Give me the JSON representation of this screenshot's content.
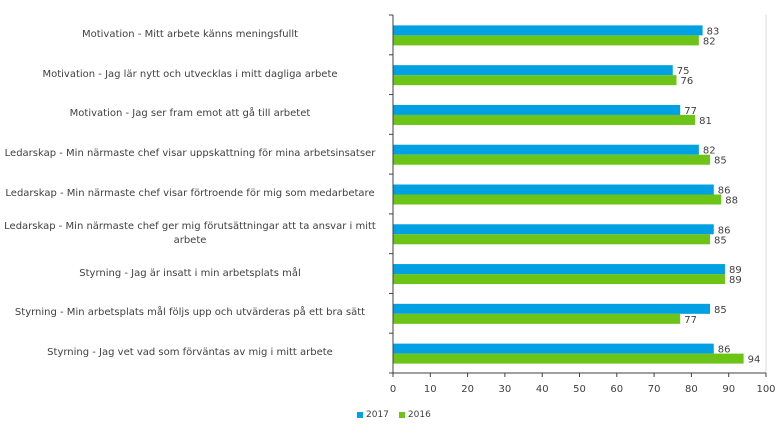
{
  "chart_data": {
    "type": "bar",
    "orientation": "horizontal",
    "categories": [
      "Motivation - Mitt arbete känns meningsfullt",
      "Motivation - Jag lär nytt och utvecklas i mitt dagliga arbete",
      "Motivation - Jag ser fram emot att gå till arbetet",
      "Ledarskap - Min närmaste chef visar uppskattning för mina arbetsinsatser",
      "Ledarskap - Min närmaste chef visar förtroende för mig som medarbetare",
      "Ledarskap - Min närmaste chef ger mig förutsättningar att ta ansvar i mitt arbete",
      "Styrning - Jag är insatt i min arbetsplats mål",
      "Styrning - Min arbetsplats mål följs upp och utvärderas på ett bra sätt",
      "Styrning - Jag vet vad som förväntas av mig i mitt arbete"
    ],
    "series": [
      {
        "name": "2017",
        "color": "#00a0e3",
        "values": [
          83,
          75,
          77,
          82,
          86,
          86,
          89,
          85,
          86
        ]
      },
      {
        "name": "2016",
        "color": "#6cc417",
        "values": [
          82,
          76,
          81,
          85,
          88,
          85,
          89,
          77,
          94
        ]
      }
    ],
    "xlim": [
      0,
      100
    ],
    "xticks": [
      "0",
      "10",
      "20",
      "30",
      "40",
      "50",
      "60",
      "70",
      "80",
      "90",
      "100"
    ],
    "grid": false,
    "data_labels": true,
    "legend_position": "bottom"
  }
}
